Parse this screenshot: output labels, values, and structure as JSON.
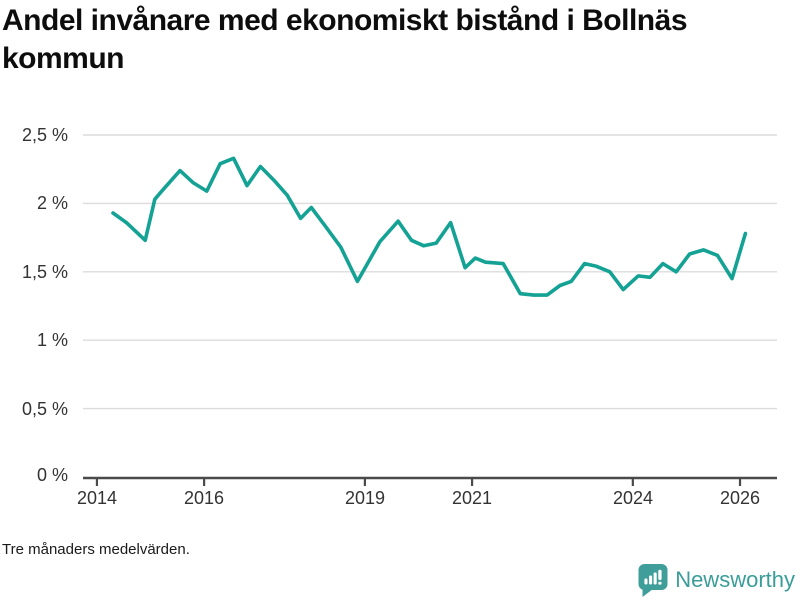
{
  "page": {
    "title": "Andel invånare med ekonomiskt bistånd i Bollnäs kommun",
    "footnote": "Tre månaders medelvärden."
  },
  "branding": {
    "label": "Newsworthy",
    "icon": "newsworthy-speech-bubble-barchart-icon",
    "color": "#3f9e9a"
  },
  "colors": {
    "line": "#14a294",
    "grid": "#dcdcdc",
    "axis": "#4a4a4a",
    "tick_text": "#333333"
  },
  "chart_data": {
    "type": "line",
    "title": "Andel invånare med ekonomiskt bistånd i Bollnäs kommun",
    "xlabel": "",
    "ylabel": "",
    "unit": "%",
    "xlim": [
      2013.74,
      2026.69
    ],
    "ylim": [
      0,
      2.5
    ],
    "grid": true,
    "legend": "none",
    "y_ticks": [
      {
        "value": 2.5,
        "label": "2,5 %"
      },
      {
        "value": 2.0,
        "label": "2 %"
      },
      {
        "value": 1.5,
        "label": "1,5 %"
      },
      {
        "value": 1.0,
        "label": "1 %"
      },
      {
        "value": 0.5,
        "label": "0,5 %"
      },
      {
        "value": 0.0,
        "label": "0 %"
      }
    ],
    "x_ticks": [
      {
        "value": 2014,
        "label": "2014"
      },
      {
        "value": 2016,
        "label": "2016"
      },
      {
        "value": 2019,
        "label": "2019"
      },
      {
        "value": 2021,
        "label": "2021"
      },
      {
        "value": 2024,
        "label": "2024"
      },
      {
        "value": 2026,
        "label": "2026"
      }
    ],
    "series": [
      {
        "color": "#14a294",
        "points": [
          [
            2014.3,
            1.93
          ],
          [
            2014.55,
            1.86
          ],
          [
            2014.9,
            1.73
          ],
          [
            2015.08,
            2.03
          ],
          [
            2015.21,
            2.09
          ],
          [
            2015.55,
            2.24
          ],
          [
            2015.8,
            2.15
          ],
          [
            2016.05,
            2.09
          ],
          [
            2016.3,
            2.29
          ],
          [
            2016.55,
            2.33
          ],
          [
            2016.8,
            2.13
          ],
          [
            2017.05,
            2.27
          ],
          [
            2017.3,
            2.17
          ],
          [
            2017.55,
            2.06
          ],
          [
            2017.8,
            1.89
          ],
          [
            2018.0,
            1.97
          ],
          [
            2018.25,
            1.84
          ],
          [
            2018.55,
            1.68
          ],
          [
            2018.86,
            1.43
          ],
          [
            2019.28,
            1.72
          ],
          [
            2019.62,
            1.87
          ],
          [
            2019.87,
            1.73
          ],
          [
            2020.1,
            1.69
          ],
          [
            2020.33,
            1.71
          ],
          [
            2020.6,
            1.86
          ],
          [
            2020.87,
            1.53
          ],
          [
            2021.06,
            1.6
          ],
          [
            2021.25,
            1.57
          ],
          [
            2021.58,
            1.56
          ],
          [
            2021.9,
            1.34
          ],
          [
            2022.15,
            1.33
          ],
          [
            2022.4,
            1.33
          ],
          [
            2022.64,
            1.4
          ],
          [
            2022.85,
            1.43
          ],
          [
            2023.1,
            1.56
          ],
          [
            2023.32,
            1.54
          ],
          [
            2023.57,
            1.5
          ],
          [
            2023.82,
            1.37
          ],
          [
            2024.1,
            1.47
          ],
          [
            2024.32,
            1.46
          ],
          [
            2024.56,
            1.56
          ],
          [
            2024.81,
            1.5
          ],
          [
            2025.06,
            1.63
          ],
          [
            2025.32,
            1.66
          ],
          [
            2025.58,
            1.62
          ],
          [
            2025.85,
            1.45
          ],
          [
            2026.1,
            1.78
          ]
        ]
      }
    ]
  }
}
